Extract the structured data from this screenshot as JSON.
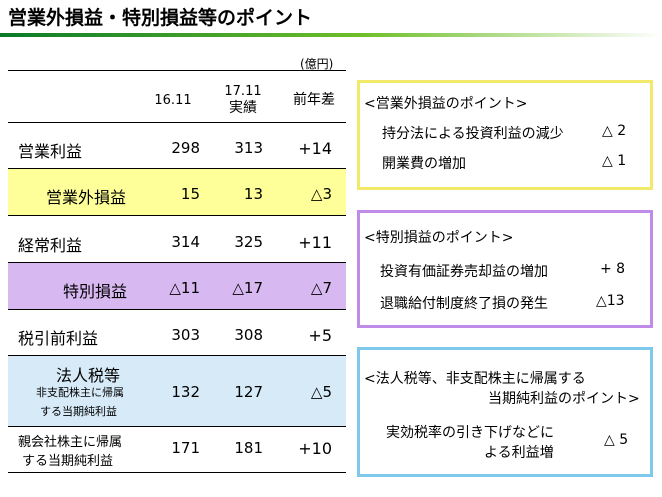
{
  "title": "営業外損益・特別損益等のポイント",
  "unit": "(億円)",
  "headers": {
    "col1": "16.11",
    "col2_line1": "17.11",
    "col2_line2": "実績",
    "col3": "前年差"
  },
  "rows": [
    {
      "label": "営業利益",
      "v1": "298",
      "v2": "313",
      "diff": "+14"
    },
    {
      "label": "営業外損益",
      "v1": "15",
      "v2": "13",
      "diff": "△3"
    },
    {
      "label": "経常利益",
      "v1": "314",
      "v2": "325",
      "diff": "+11"
    },
    {
      "label": "特別損益",
      "v1": "△11",
      "v2": "△17",
      "diff": "△7"
    },
    {
      "label": "税引前利益",
      "v1": "303",
      "v2": "308",
      "diff": "+5"
    },
    {
      "label": "法人税等",
      "sub1": "非支配株主に帰属",
      "sub2": "する当期純利益",
      "v1": "132",
      "v2": "127",
      "diff": "△5"
    },
    {
      "label1": "親会社株主に帰属",
      "label2": "する当期純利益",
      "v1": "171",
      "v2": "181",
      "diff": "+10"
    }
  ],
  "boxes": {
    "non_operating": {
      "title": "<営業外損益のポイント>",
      "items": [
        {
          "text": "持分法による投資利益の減少",
          "value": "△ 2"
        },
        {
          "text": "開業費の増加",
          "value": "△ 1"
        }
      ]
    },
    "extraordinary": {
      "title": "<特別損益のポイント>",
      "items": [
        {
          "text": "投資有価証券売却益の増加",
          "value": "+ 8"
        },
        {
          "text": "退職給付制度終了損の発生",
          "value": "△13"
        }
      ]
    },
    "tax": {
      "title_line1": "<法人税等、非支配株主に帰属する",
      "title_line2": "当期純利益のポイント>",
      "item_line1": "実効税率の引き下げなどに",
      "item_line2": "よる利益増",
      "item_value": "△ 5"
    }
  },
  "colors": {
    "yellow_band": "#ffff99",
    "purple_band": "#d8b8f0",
    "blue_band": "#d6eaf8",
    "yellow_border": "#f2e96a",
    "purple_border": "#c08ae8",
    "blue_border": "#7ec8ec"
  }
}
